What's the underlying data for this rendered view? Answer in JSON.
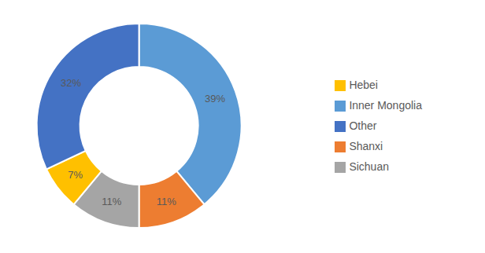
{
  "chart_data": {
    "type": "pie",
    "categories": [
      "Inner Mongolia",
      "Shanxi",
      "Sichuan",
      "Hebei",
      "Other"
    ],
    "values": [
      39,
      11,
      11,
      7,
      32
    ],
    "value_labels": [
      "39%",
      "11%",
      "11%",
      "7%",
      "32%"
    ],
    "colors": [
      "#5B9BD5",
      "#ED7D31",
      "#A5A5A5",
      "#FFC000",
      "#4472C4"
    ],
    "data_labels": true,
    "legend": "right"
  }
}
